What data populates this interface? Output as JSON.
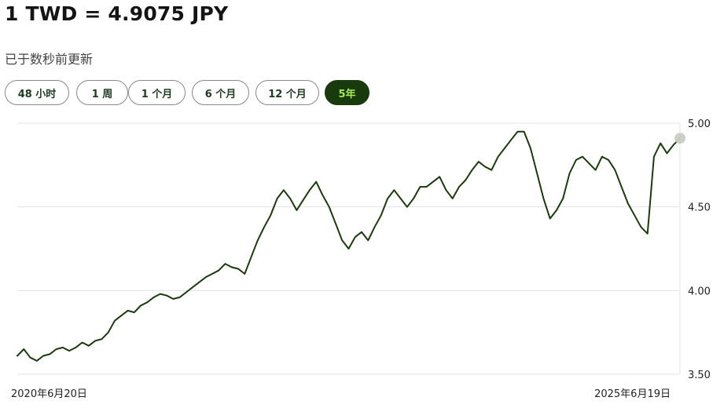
{
  "header": {
    "title": "1 TWD = 4.9075 JPY",
    "updated": "已于数秒前更新"
  },
  "range_tabs": [
    {
      "label": "48 小时",
      "active": false
    },
    {
      "label": "1 周",
      "active": false
    },
    {
      "label": "1 个月",
      "active": false
    },
    {
      "label": "6 个月",
      "active": false
    },
    {
      "label": "12 个月",
      "active": false
    },
    {
      "label": "5年",
      "active": true
    }
  ],
  "colors": {
    "line": "#1c3a0e",
    "grid": "#e3e3e3",
    "active_tab_bg": "#183a0c",
    "active_tab_text": "#a3e85f",
    "marker": "#c9cdc5"
  },
  "chart_data": {
    "type": "line",
    "title": "",
    "xlabel": "",
    "ylabel": "",
    "x_start_label": "2020年6月20日",
    "x_end_label": "2025年6月19日",
    "ylim": [
      3.5,
      5.0
    ],
    "y_ticks": [
      "3.50",
      "4.00",
      "4.50",
      "5.00"
    ],
    "grid": true,
    "series": [
      {
        "values": [
          3.61,
          3.65,
          3.6,
          3.58,
          3.61,
          3.62,
          3.65,
          3.66,
          3.64,
          3.66,
          3.69,
          3.67,
          3.7,
          3.71,
          3.75,
          3.82,
          3.85,
          3.88,
          3.87,
          3.91,
          3.93,
          3.96,
          3.98,
          3.97,
          3.95,
          3.96,
          3.99,
          4.02,
          4.05,
          4.08,
          4.1,
          4.12,
          4.16,
          4.14,
          4.13,
          4.1,
          4.2,
          4.3,
          4.38,
          4.45,
          4.55,
          4.6,
          4.55,
          4.48,
          4.54,
          4.6,
          4.65,
          4.57,
          4.5,
          4.4,
          4.3,
          4.25,
          4.32,
          4.35,
          4.3,
          4.38,
          4.45,
          4.55,
          4.6,
          4.55,
          4.5,
          4.55,
          4.62,
          4.62,
          4.65,
          4.68,
          4.6,
          4.55,
          4.62,
          4.66,
          4.72,
          4.77,
          4.74,
          4.72,
          4.8,
          4.85,
          4.9,
          4.95,
          4.95,
          4.85,
          4.7,
          4.55,
          4.43,
          4.48,
          4.55,
          4.7,
          4.78,
          4.8,
          4.76,
          4.72,
          4.8,
          4.78,
          4.72,
          4.62,
          4.52,
          4.45,
          4.38,
          4.34,
          4.8,
          4.88,
          4.82,
          4.87,
          4.91
        ]
      }
    ],
    "last_value": 4.9075
  }
}
